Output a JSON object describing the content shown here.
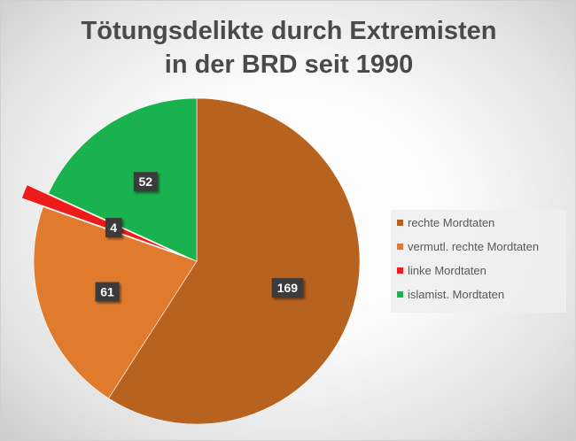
{
  "chart_data": {
    "type": "pie",
    "title_line1": "Tötungsdelikte durch Extremisten",
    "title_line2": "in der BRD seit 1990",
    "categories": [
      "rechte Mordtaten",
      "vermutl. rechte Mordtaten",
      "linke Mordtaten",
      "islamist. Mordtaten"
    ],
    "values": [
      169,
      61,
      4,
      52
    ],
    "colors": [
      "#b8621f",
      "#e07b2e",
      "#ee1b1b",
      "#1ab14f"
    ],
    "exploded": [
      false,
      false,
      true,
      false
    ],
    "start_angle_deg": 0,
    "direction": "clockwise",
    "data_labels": true,
    "legend_position": "right"
  }
}
